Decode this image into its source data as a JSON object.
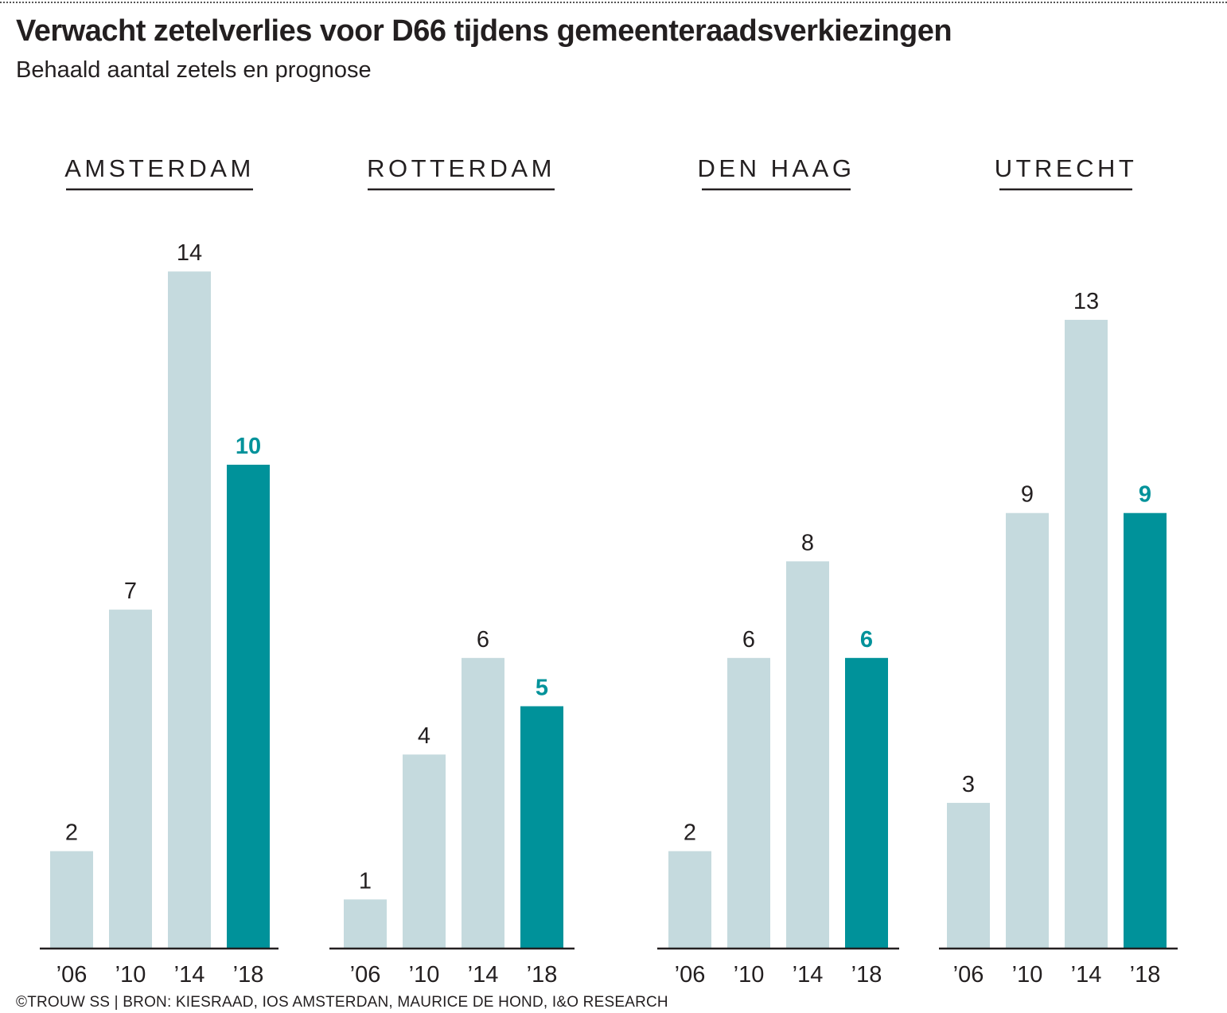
{
  "title": "Verwacht zetelverlies voor D66 tijdens gemeenteraadsverkiezingen",
  "subtitle": "Behaald aantal zetels en prognose",
  "source": "©TROUW SS | BRON: KIESRAAD, IOS AMSTERDAN, MAURICE DE HOND, I&O RESEARCH",
  "colors": {
    "actual": "#c5dade",
    "prognosis": "#00929a",
    "text": "#231f20",
    "prognosis_label": "#00929a"
  },
  "chart_data": [
    {
      "type": "bar",
      "title": "AMSTERDAM",
      "categories": [
        "’06",
        "’10",
        "’14",
        "’18"
      ],
      "values": [
        2,
        7,
        14,
        10
      ],
      "prognosis_index": 3,
      "ylim": [
        0,
        14
      ]
    },
    {
      "type": "bar",
      "title": "ROTTERDAM",
      "categories": [
        "’06",
        "’10",
        "’14",
        "’18"
      ],
      "values": [
        1,
        4,
        6,
        5
      ],
      "prognosis_index": 3,
      "ylim": [
        0,
        14
      ]
    },
    {
      "type": "bar",
      "title": "DEN HAAG",
      "categories": [
        "’06",
        "’10",
        "’14",
        "’18"
      ],
      "values": [
        2,
        6,
        8,
        6
      ],
      "prognosis_index": 3,
      "ylim": [
        0,
        14
      ]
    },
    {
      "type": "bar",
      "title": "UTRECHT",
      "categories": [
        "’06",
        "’10",
        "’14",
        "’18"
      ],
      "values": [
        3,
        9,
        13,
        9
      ],
      "prognosis_index": 3,
      "ylim": [
        0,
        14
      ]
    }
  ]
}
